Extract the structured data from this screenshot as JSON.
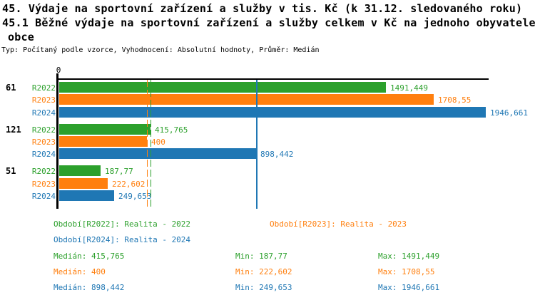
{
  "title": {
    "line1": "45. Výdaje na sportovní zařízení a služby v tis. Kč (k 31.12. sledovaného roku)",
    "line2": "45.1 Běžné výdaje na sportovní zařízení a služby celkem v Kč na jednoho obyvatele",
    "line3": "obce",
    "meta": "Typ: Počítaný podle vzorce, Vyhodnocení: Absolutní hodnoty, Průměr: Medián"
  },
  "chart_data": {
    "type": "bar",
    "orientation": "horizontal",
    "title": "45.1 Běžné výdaje na sportovní zařízení a služby celkem v Kč na jednoho obyvatele obce",
    "xlim": [
      0,
      1960
    ],
    "x_ticks": [
      "0"
    ],
    "grid": false,
    "legend_position": "bottom",
    "series": [
      {
        "name": "R2022",
        "color": "#2ca02c",
        "median": 415.765,
        "median_line_style": "dashed"
      },
      {
        "name": "R2023",
        "color": "#ff7f0e",
        "median": 400,
        "median_line_style": "dashed"
      },
      {
        "name": "R2024",
        "color": "#1f77b4",
        "median": 898.442,
        "median_line_style": "solid"
      }
    ],
    "groups": [
      {
        "label": "61",
        "values": [
          1491.449,
          1708.55,
          1946.661
        ],
        "value_labels": [
          "1491,449",
          "1708,55",
          "1946,661"
        ]
      },
      {
        "label": "121",
        "values": [
          415.765,
          400,
          898.442
        ],
        "value_labels": [
          "415,765",
          "400",
          "898,442"
        ]
      },
      {
        "label": "51",
        "values": [
          187.77,
          222.602,
          249.653
        ],
        "value_labels": [
          "187,77",
          "222,602",
          "249,653"
        ]
      }
    ]
  },
  "legend": {
    "items": [
      {
        "text": "Období[R2022]: Realita - 2022",
        "series": "R2022"
      },
      {
        "text": "Období[R2023]: Realita - 2023",
        "series": "R2023"
      },
      {
        "text": "Období[R2024]: Realita - 2024",
        "series": "R2024"
      }
    ]
  },
  "stats": {
    "rows": [
      {
        "series": "R2022",
        "median": "Medián: 415,765",
        "min": "Min: 187,77",
        "max": "Max: 1491,449"
      },
      {
        "series": "R2023",
        "median": "Medián: 400",
        "min": "Min: 222,602",
        "max": "Max: 1708,55"
      },
      {
        "series": "R2024",
        "median": "Medián: 898,442",
        "min": "Min: 249,653",
        "max": "Max: 1946,661"
      }
    ]
  }
}
